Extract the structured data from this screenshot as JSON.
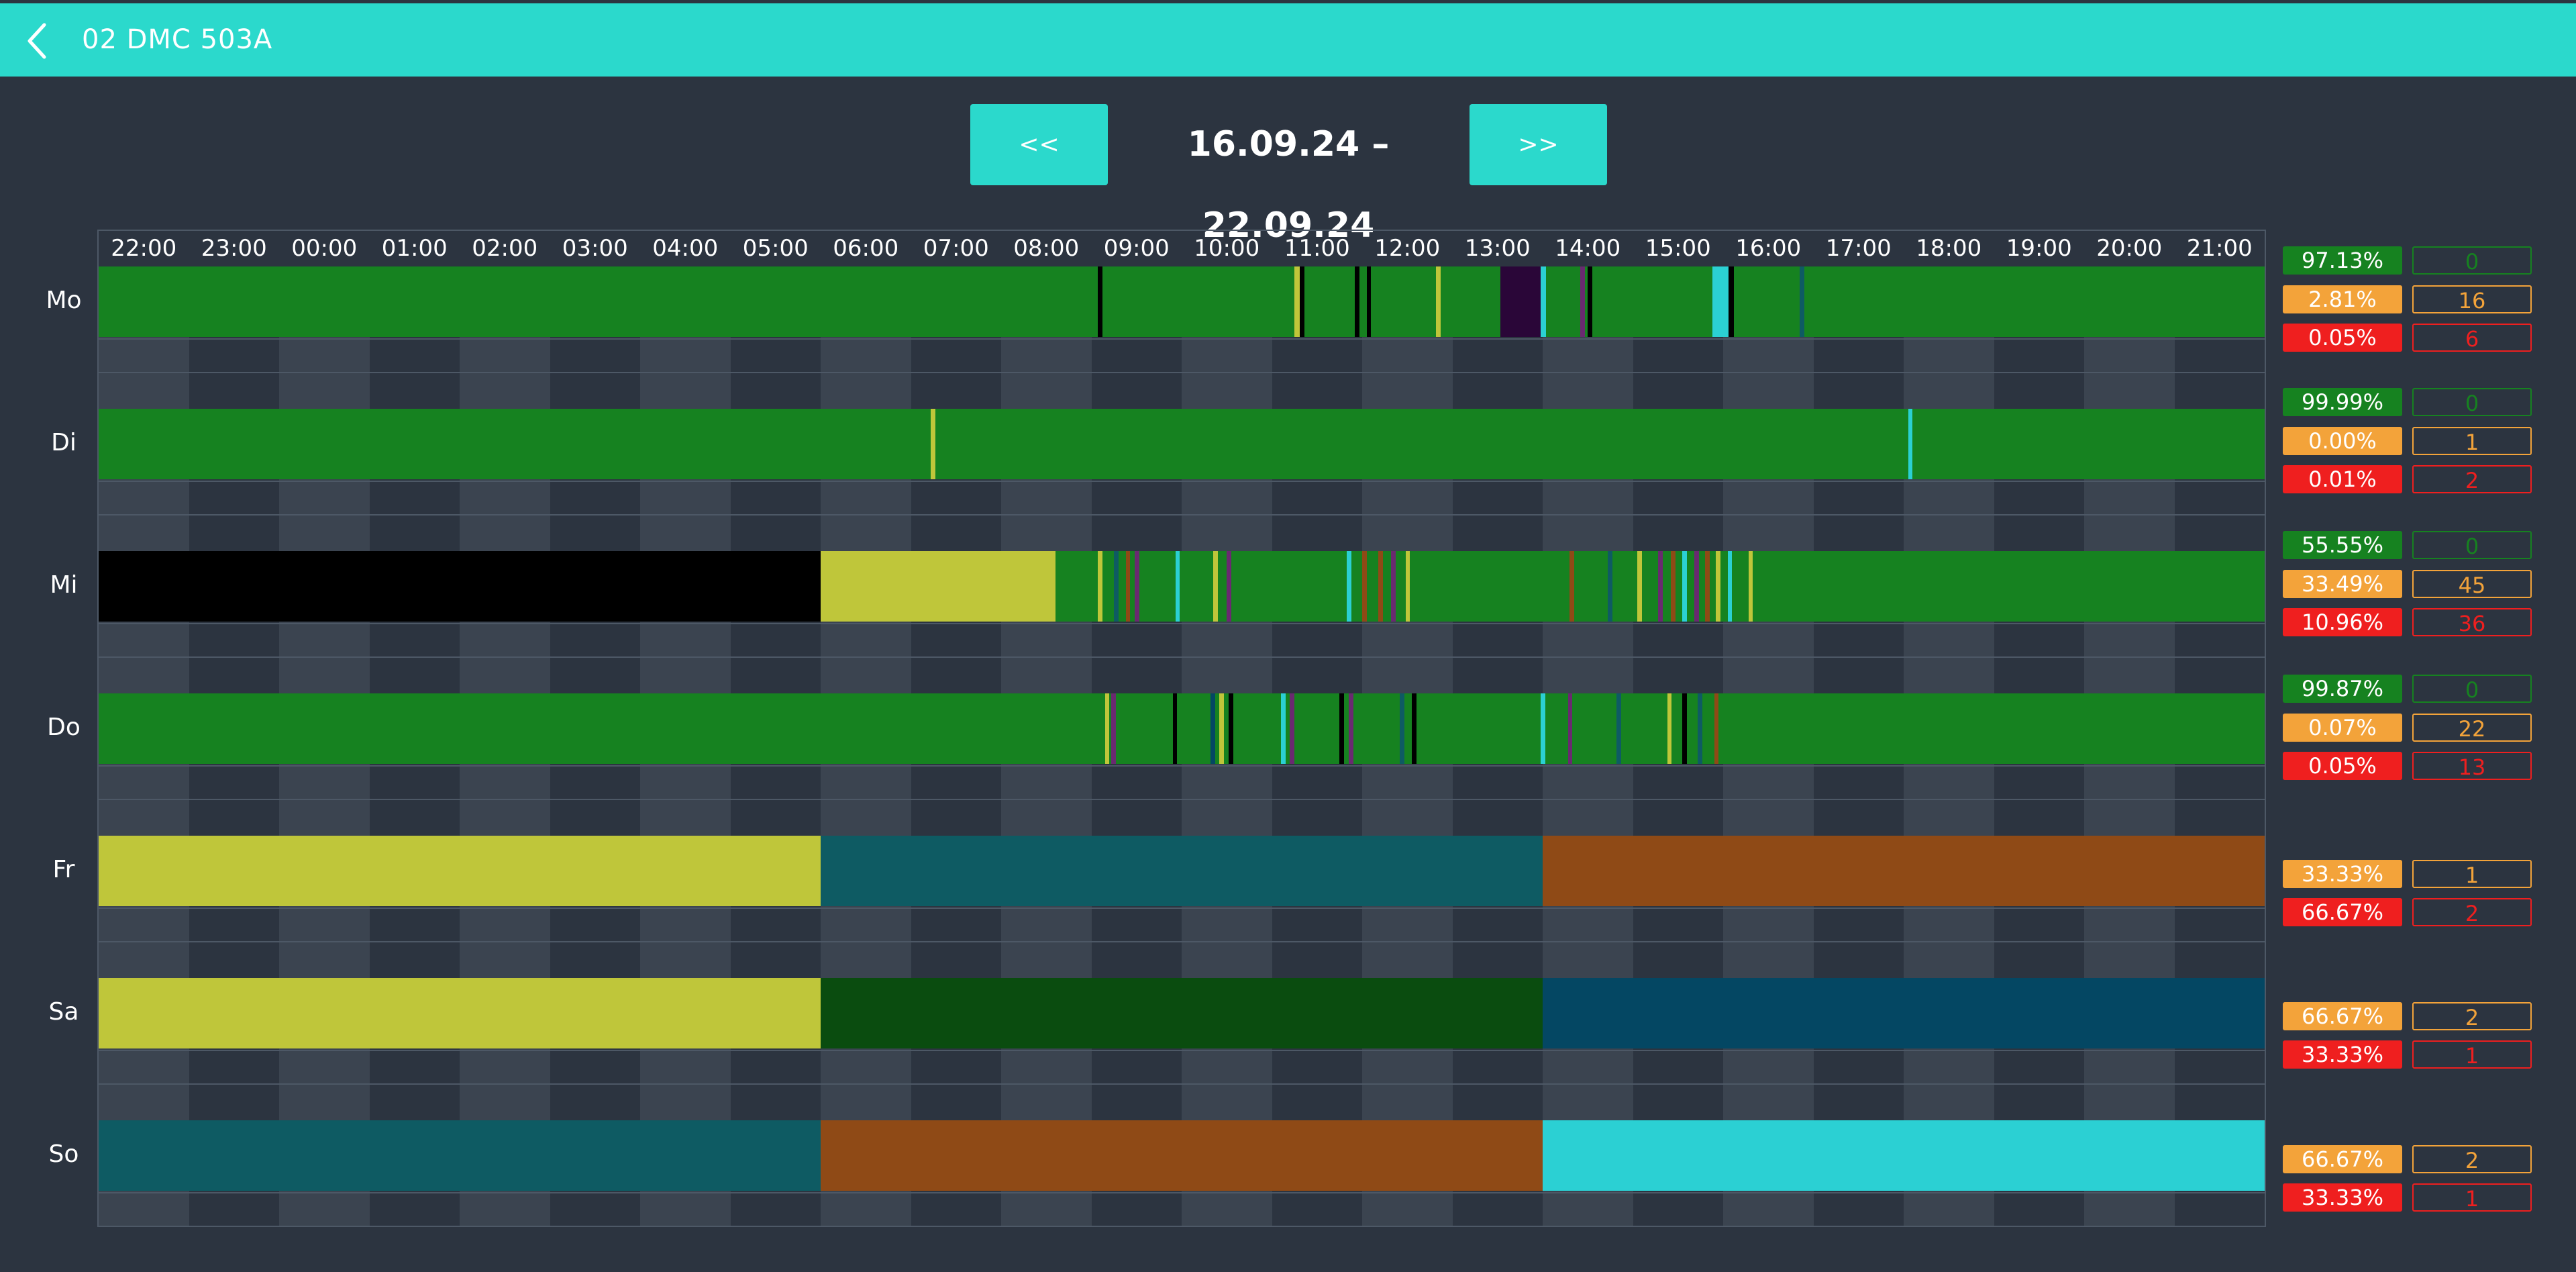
{
  "header": {
    "title": "02 DMC 503A",
    "back_icon": "chevron-left-icon"
  },
  "nav": {
    "prev_label": "<<",
    "next_label": ">>",
    "range": "16.09.24 – 22.09.24"
  },
  "hours": [
    "22:00",
    "23:00",
    "00:00",
    "01:00",
    "02:00",
    "03:00",
    "04:00",
    "05:00",
    "06:00",
    "07:00",
    "08:00",
    "09:00",
    "10:00",
    "11:00",
    "12:00",
    "13:00",
    "14:00",
    "15:00",
    "16:00",
    "17:00",
    "18:00",
    "19:00",
    "20:00",
    "21:00"
  ],
  "colors": {
    "green": "#168220",
    "dark_green": "#0a4c0f",
    "yellow": "#bfc63a",
    "teal": "#0e5b63",
    "brown": "#8f4a16",
    "cyan": "#2bd0d3",
    "blue": "#044763",
    "black": "#000000",
    "purple": "#2a0638",
    "violet": "#6a2a70",
    "stat_green": "#168220",
    "stat_orange": "#f3a33a",
    "stat_red": "#ef1f1f"
  },
  "days": [
    {
      "label": "Mo",
      "segments": [
        {
          "from": 0,
          "to": 24,
          "color": "#168220"
        },
        {
          "from": 11.07,
          "to": 11.12,
          "color": "#000000"
        },
        {
          "from": 13.25,
          "to": 13.31,
          "color": "#bfc63a"
        },
        {
          "from": 13.31,
          "to": 13.36,
          "color": "#000000"
        },
        {
          "from": 13.92,
          "to": 13.97,
          "color": "#000000"
        },
        {
          "from": 14.05,
          "to": 14.1,
          "color": "#000000"
        },
        {
          "from": 14.82,
          "to": 14.87,
          "color": "#bfc63a"
        },
        {
          "from": 15.53,
          "to": 15.98,
          "color": "#2a0638"
        },
        {
          "from": 15.98,
          "to": 16.04,
          "color": "#2bd0d3"
        },
        {
          "from": 16.42,
          "to": 16.47,
          "color": "#6a2a70"
        },
        {
          "from": 16.5,
          "to": 16.55,
          "color": "#000000"
        },
        {
          "from": 17.88,
          "to": 18.06,
          "color": "#2bd0d3"
        },
        {
          "from": 18.06,
          "to": 18.12,
          "color": "#000000"
        },
        {
          "from": 18.85,
          "to": 18.9,
          "color": "#0e5b63"
        }
      ],
      "stats": {
        "green_pct": "97.13%",
        "green_cnt": "0",
        "orange_pct": "2.81%",
        "orange_cnt": "16",
        "red_pct": "0.05%",
        "red_cnt": "6"
      }
    },
    {
      "label": "Di",
      "segments": [
        {
          "from": 0,
          "to": 24,
          "color": "#168220"
        },
        {
          "from": 9.22,
          "to": 9.27,
          "color": "#bfc63a"
        },
        {
          "from": 20.05,
          "to": 20.1,
          "color": "#2bd0d3"
        }
      ],
      "stats": {
        "green_pct": "99.99%",
        "green_cnt": "0",
        "orange_pct": "0.00%",
        "orange_cnt": "1",
        "red_pct": "0.01%",
        "red_cnt": "2"
      }
    },
    {
      "label": "Mi",
      "segments": [
        {
          "from": 0,
          "to": 8.0,
          "color": "#000000"
        },
        {
          "from": 8.0,
          "to": 10.6,
          "color": "#bfc63a"
        },
        {
          "from": 10.6,
          "to": 24,
          "color": "#168220"
        },
        {
          "from": 11.07,
          "to": 11.12,
          "color": "#bfc63a"
        },
        {
          "from": 11.25,
          "to": 11.3,
          "color": "#0e5b63"
        },
        {
          "from": 11.38,
          "to": 11.43,
          "color": "#8f4a16"
        },
        {
          "from": 11.48,
          "to": 11.53,
          "color": "#6a2a70"
        },
        {
          "from": 11.93,
          "to": 11.98,
          "color": "#2bd0d3"
        },
        {
          "from": 12.35,
          "to": 12.4,
          "color": "#bfc63a"
        },
        {
          "from": 12.5,
          "to": 12.55,
          "color": "#6a2a70"
        },
        {
          "from": 13.83,
          "to": 13.88,
          "color": "#2bd0d3"
        },
        {
          "from": 14.0,
          "to": 14.05,
          "color": "#8f4a16"
        },
        {
          "from": 14.18,
          "to": 14.23,
          "color": "#8f4a16"
        },
        {
          "from": 14.32,
          "to": 14.37,
          "color": "#6a2a70"
        },
        {
          "from": 14.48,
          "to": 14.53,
          "color": "#bfc63a"
        },
        {
          "from": 16.3,
          "to": 16.35,
          "color": "#8f4a16"
        },
        {
          "from": 16.72,
          "to": 16.77,
          "color": "#0e5b63"
        },
        {
          "from": 17.05,
          "to": 17.1,
          "color": "#bfc63a"
        },
        {
          "from": 17.28,
          "to": 17.33,
          "color": "#6a2a70"
        },
        {
          "from": 17.42,
          "to": 17.47,
          "color": "#8f4a16"
        },
        {
          "from": 17.55,
          "to": 17.6,
          "color": "#2bd0d3"
        },
        {
          "from": 17.68,
          "to": 17.73,
          "color": "#6a2a70"
        },
        {
          "from": 17.8,
          "to": 17.85,
          "color": "#8f4a16"
        },
        {
          "from": 17.92,
          "to": 17.97,
          "color": "#bfc63a"
        },
        {
          "from": 18.05,
          "to": 18.1,
          "color": "#2bd0d3"
        },
        {
          "from": 18.28,
          "to": 18.33,
          "color": "#bfc63a"
        }
      ],
      "stats": {
        "green_pct": "55.55%",
        "green_cnt": "0",
        "orange_pct": "33.49%",
        "orange_cnt": "45",
        "red_pct": "10.96%",
        "red_cnt": "36"
      }
    },
    {
      "label": "Do",
      "segments": [
        {
          "from": 0,
          "to": 24,
          "color": "#168220"
        },
        {
          "from": 11.15,
          "to": 11.2,
          "color": "#bfc63a"
        },
        {
          "from": 11.22,
          "to": 11.27,
          "color": "#6a2a70"
        },
        {
          "from": 11.9,
          "to": 11.95,
          "color": "#000000"
        },
        {
          "from": 12.32,
          "to": 12.37,
          "color": "#044763"
        },
        {
          "from": 12.42,
          "to": 12.47,
          "color": "#bfc63a"
        },
        {
          "from": 12.52,
          "to": 12.57,
          "color": "#000000"
        },
        {
          "from": 13.1,
          "to": 13.15,
          "color": "#2bd0d3"
        },
        {
          "from": 13.2,
          "to": 13.25,
          "color": "#6a2a70"
        },
        {
          "from": 13.75,
          "to": 13.8,
          "color": "#000000"
        },
        {
          "from": 13.85,
          "to": 13.9,
          "color": "#6a2a70"
        },
        {
          "from": 14.42,
          "to": 14.47,
          "color": "#0e5b63"
        },
        {
          "from": 14.55,
          "to": 14.6,
          "color": "#000000"
        },
        {
          "from": 15.98,
          "to": 16.03,
          "color": "#2bd0d3"
        },
        {
          "from": 16.28,
          "to": 16.33,
          "color": "#6a2a70"
        },
        {
          "from": 16.82,
          "to": 16.87,
          "color": "#0e5b63"
        },
        {
          "from": 17.38,
          "to": 17.43,
          "color": "#bfc63a"
        },
        {
          "from": 17.55,
          "to": 17.6,
          "color": "#000000"
        },
        {
          "from": 17.72,
          "to": 17.77,
          "color": "#0e5b63"
        },
        {
          "from": 17.9,
          "to": 17.95,
          "color": "#8f4a16"
        }
      ],
      "stats": {
        "green_pct": "99.87%",
        "green_cnt": "0",
        "orange_pct": "0.07%",
        "orange_cnt": "22",
        "red_pct": "0.05%",
        "red_cnt": "13"
      }
    },
    {
      "label": "Fr",
      "segments": [
        {
          "from": 0,
          "to": 8.0,
          "color": "#bfc63a"
        },
        {
          "from": 8.0,
          "to": 16.0,
          "color": "#0e5b63"
        },
        {
          "from": 16.0,
          "to": 24,
          "color": "#8f4a16"
        }
      ],
      "stats": {
        "orange_pct": "33.33%",
        "orange_cnt": "1",
        "red_pct": "66.67%",
        "red_cnt": "2"
      }
    },
    {
      "label": "Sa",
      "segments": [
        {
          "from": 0,
          "to": 8.0,
          "color": "#bfc63a"
        },
        {
          "from": 8.0,
          "to": 16.0,
          "color": "#0a4c0f"
        },
        {
          "from": 16.0,
          "to": 24,
          "color": "#044763"
        }
      ],
      "stats": {
        "orange_pct": "66.67%",
        "orange_cnt": "2",
        "red_pct": "33.33%",
        "red_cnt": "1"
      }
    },
    {
      "label": "So",
      "segments": [
        {
          "from": 0,
          "to": 8.0,
          "color": "#0e5b63"
        },
        {
          "from": 8.0,
          "to": 16.0,
          "color": "#8f4a16"
        },
        {
          "from": 16.0,
          "to": 24,
          "color": "#2bd0d3"
        }
      ],
      "stats": {
        "orange_pct": "66.67%",
        "orange_cnt": "2",
        "red_pct": "33.33%",
        "red_cnt": "1"
      }
    }
  ]
}
